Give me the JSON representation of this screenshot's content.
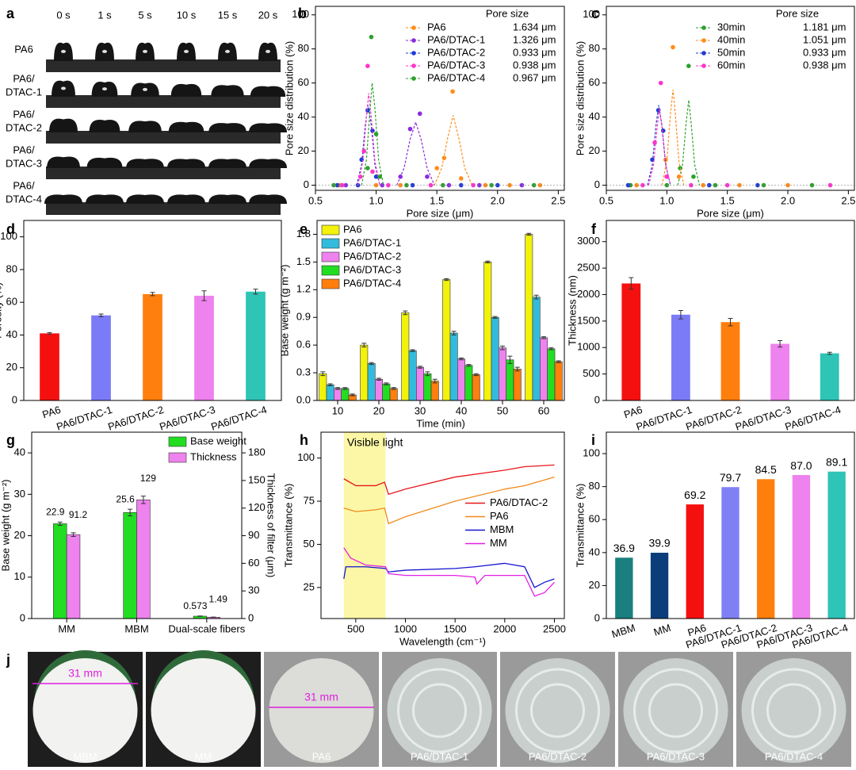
{
  "photo_panels": {
    "a": {
      "panel": "a",
      "columns": [
        "0 s",
        "1 s",
        "5 s",
        "10 s",
        "15 s",
        "20 s"
      ],
      "rows": [
        [
          "PA6"
        ],
        [
          "PA6/",
          "DTAC-1"
        ],
        [
          "PA6/",
          "DTAC-2"
        ],
        [
          "PA6/",
          "DTAC-3"
        ],
        [
          "PA6/",
          "DTAC-4"
        ]
      ]
    },
    "j": {
      "panel": "j",
      "labels": [
        "MBM",
        "MM",
        "PA6",
        "PA6/DTAC-1",
        "PA6/DTAC-2",
        "PA6/DTAC-3",
        "PA6/DTAC-4"
      ],
      "scale_label": "31 mm"
    }
  },
  "chart_data": [
    {
      "type": "scatter",
      "panel": "b",
      "xlabel": "Pore size (μm)",
      "ylabel": "Pore size distribution (%)",
      "legend_title": "Pore size",
      "xlim": [
        0.5,
        2.55
      ],
      "ylim": [
        -3,
        105
      ],
      "xticks": [
        0.5,
        {
          "value": 1,
          "label": "1.0"
        },
        1.5,
        {
          "value": 2,
          "label": "2.0"
        },
        2.5
      ],
      "yticks": [
        0,
        20,
        40,
        60,
        80,
        100
      ],
      "series": [
        {
          "name": "PA6",
          "size_label": "1.634 μm",
          "color": "#ff8c1a",
          "x": [
            0.7,
            1.0,
            1.2,
            1.5,
            1.56,
            1.63,
            1.7,
            1.9,
            2.1,
            2.35
          ],
          "values": [
            0,
            0,
            0,
            10,
            16,
            55,
            4,
            0,
            0,
            0
          ],
          "fit_x": [
            1.48,
            1.54,
            1.59,
            1.634,
            1.68,
            1.73,
            1.79
          ],
          "fit_values": [
            0,
            10,
            28,
            41,
            28,
            10,
            0
          ]
        },
        {
          "name": "PA6/DTAC-1",
          "size_label": "1.326 μm",
          "color": "#8a2be2",
          "x": [
            0.75,
            1.05,
            1.2,
            1.28,
            1.36,
            1.42,
            1.6,
            1.85,
            2.2
          ],
          "values": [
            0,
            0,
            5,
            33,
            42,
            5,
            0,
            0,
            0
          ],
          "fit_x": [
            1.17,
            1.23,
            1.28,
            1.326,
            1.37,
            1.42,
            1.48
          ],
          "fit_values": [
            0,
            10,
            27,
            37,
            27,
            10,
            0
          ]
        },
        {
          "name": "PA6/DTAC-2",
          "size_label": "0.933 μm",
          "color": "#1f3bd6",
          "x": [
            0.68,
            0.85,
            0.88,
            0.93,
            0.97,
            1.0,
            1.3,
            1.7,
            2.0
          ],
          "values": [
            0,
            0,
            15,
            44,
            32,
            5,
            0,
            0,
            0
          ],
          "fit_x": [
            0.84,
            0.88,
            0.91,
            0.933,
            0.96,
            0.99,
            1.03
          ],
          "fit_values": [
            0,
            12,
            35,
            47,
            35,
            12,
            0
          ]
        },
        {
          "name": "PA6/DTAC-3",
          "size_label": "0.938 μm",
          "color": "#ff33cc",
          "x": [
            0.72,
            0.87,
            0.9,
            0.93,
            0.97,
            1.1,
            1.45,
            1.8
          ],
          "values": [
            0,
            5,
            20,
            70,
            8,
            0,
            0,
            0
          ],
          "fit_x": [
            0.85,
            0.89,
            0.92,
            0.938,
            0.96,
            0.99,
            1.03
          ],
          "fit_values": [
            0,
            14,
            40,
            54,
            40,
            14,
            0
          ]
        },
        {
          "name": "PA6/DTAC-4",
          "size_label": "0.967 μm",
          "color": "#2ca02c",
          "x": [
            0.65,
            0.93,
            0.96,
            1.0,
            1.03,
            1.25,
            1.55,
            1.95,
            2.3
          ],
          "values": [
            0,
            10,
            87,
            30,
            5,
            0,
            0,
            0,
            0
          ],
          "fit_x": [
            0.88,
            0.92,
            0.95,
            0.967,
            0.99,
            1.02,
            1.06
          ],
          "fit_values": [
            0,
            15,
            45,
            60,
            45,
            15,
            0
          ]
        }
      ]
    },
    {
      "type": "scatter",
      "panel": "c",
      "xlabel": "Pore size (μm)",
      "ylabel": "Pore size distribution (%)",
      "legend_title": "Pore size",
      "xlim": [
        0.5,
        2.55
      ],
      "ylim": [
        -3,
        105
      ],
      "xticks": [
        0.5,
        {
          "value": 1,
          "label": "1.0"
        },
        1.5,
        {
          "value": 2,
          "label": "2.0"
        },
        2.5
      ],
      "yticks": [
        0,
        20,
        40,
        60,
        80,
        100
      ],
      "series": [
        {
          "name": "30min",
          "size_label": "1.181 μm",
          "color": "#2ca02c",
          "x": [
            0.7,
            1.0,
            1.11,
            1.18,
            1.22,
            1.4,
            1.8,
            2.2
          ],
          "values": [
            0,
            0,
            10,
            70,
            5,
            0,
            0,
            0
          ],
          "fit_x": [
            1.09,
            1.13,
            1.16,
            1.181,
            1.2,
            1.23,
            1.27
          ],
          "fit_values": [
            0,
            12,
            37,
            50,
            37,
            12,
            0
          ]
        },
        {
          "name": "40min",
          "size_label": "1.051 μm",
          "color": "#ff8c1a",
          "x": [
            0.75,
            0.99,
            1.05,
            1.1,
            1.3,
            1.6,
            2.0
          ],
          "values": [
            0,
            15,
            81,
            5,
            0,
            0,
            0
          ],
          "fit_x": [
            0.96,
            1.0,
            1.03,
            1.051,
            1.07,
            1.1,
            1.14
          ],
          "fit_values": [
            0,
            14,
            42,
            56,
            42,
            14,
            0
          ]
        },
        {
          "name": "50min",
          "size_label": "0.933 μm",
          "color": "#1f3bd6",
          "x": [
            0.68,
            0.88,
            0.93,
            0.97,
            1.0,
            1.35,
            1.75
          ],
          "values": [
            0,
            15,
            44,
            32,
            5,
            0,
            0
          ],
          "fit_x": [
            0.84,
            0.88,
            0.91,
            0.933,
            0.96,
            0.99,
            1.03
          ],
          "fit_values": [
            0,
            12,
            35,
            47,
            35,
            12,
            0
          ]
        },
        {
          "name": "60min",
          "size_label": "0.938 μm",
          "color": "#ff33cc",
          "x": [
            0.8,
            0.9,
            0.95,
            1.0,
            1.2,
            1.5,
            2.35
          ],
          "values": [
            0,
            25,
            60,
            5,
            0,
            0,
            0
          ],
          "fit_x": [
            0.85,
            0.89,
            0.92,
            0.938,
            0.96,
            0.99,
            1.03
          ],
          "fit_values": [
            0,
            12,
            34,
            45,
            34,
            12,
            0
          ]
        }
      ]
    },
    {
      "type": "bar",
      "panel": "d",
      "ylabel": "Porosity (%)",
      "ylim": [
        0,
        110
      ],
      "yticks": [
        0,
        20,
        40,
        60,
        80,
        100
      ],
      "categories": [
        "PA6",
        "PA6/DTAC-1",
        "PA6/DTAC-2",
        "PA6/DTAC-3",
        "PA6/DTAC-4"
      ],
      "values": [
        41,
        52,
        65,
        64,
        66.5
      ],
      "errors": [
        0.5,
        0.8,
        1,
        3,
        1.5
      ],
      "colors": [
        "#f51010",
        "#7b7bf7",
        "#ff7f0e",
        "#ee82ee",
        "#2ec4b6"
      ]
    },
    {
      "type": "bar",
      "panel": "e",
      "xlabel": "Time (min)",
      "ylabel": "Base weight (g m⁻²)",
      "ylim": [
        0,
        1.95
      ],
      "yticks": [
        {
          "value": 0,
          "label": "0.0"
        },
        0.3,
        0.6,
        0.9,
        1.2,
        1.5,
        1.8
      ],
      "legend": "upper left",
      "categories": [
        "10",
        "20",
        "30",
        "40",
        "50",
        "60"
      ],
      "series": [
        {
          "name": "PA6",
          "color": "#f2f20a",
          "values": [
            0.29,
            0.6,
            0.95,
            1.31,
            1.5,
            1.8
          ],
          "errors": [
            0.02,
            0.02,
            0.02,
            0.01,
            0.01,
            0.01
          ]
        },
        {
          "name": "PA6/DTAC-1",
          "color": "#33bbdd",
          "values": [
            0.17,
            0.4,
            0.54,
            0.73,
            0.9,
            1.12
          ],
          "errors": [
            0.01,
            0.01,
            0.01,
            0.02,
            0.01,
            0.02
          ]
        },
        {
          "name": "PA6/DTAC-2",
          "color": "#ee82ee",
          "values": [
            0.13,
            0.23,
            0.36,
            0.45,
            0.57,
            0.68
          ],
          "errors": [
            0.01,
            0.01,
            0.01,
            0.01,
            0.02,
            0.01
          ]
        },
        {
          "name": "PA6/DTAC-3",
          "color": "#22dd22",
          "values": [
            0.13,
            0.18,
            0.29,
            0.38,
            0.44,
            0.56
          ],
          "errors": [
            0.01,
            0.01,
            0.02,
            0.01,
            0.04,
            0.01
          ]
        },
        {
          "name": "PA6/DTAC-4",
          "color": "#ff7f0e",
          "values": [
            0.06,
            0.13,
            0.21,
            0.28,
            0.34,
            0.42
          ],
          "errors": [
            0.01,
            0.01,
            0.02,
            0.01,
            0.02,
            0.01
          ]
        }
      ]
    },
    {
      "type": "bar",
      "panel": "f",
      "ylabel": "Thickness (nm)",
      "ylim": [
        0,
        3400
      ],
      "yticks": [
        0,
        500,
        1000,
        1500,
        2000,
        2500,
        3000
      ],
      "categories": [
        "PA6",
        "PA6/DTAC-1",
        "PA6/DTAC-2",
        "PA6/DTAC-3",
        "PA6/DTAC-4"
      ],
      "values": [
        2210,
        1620,
        1480,
        1070,
        890
      ],
      "errors": [
        110,
        80,
        70,
        60,
        20
      ],
      "colors": [
        "#f51010",
        "#7b7bf7",
        "#ff7f0e",
        "#ee82ee",
        "#2ec4b6"
      ]
    },
    {
      "type": "bar",
      "panel": "g",
      "ylabel": "Base weight (g m⁻²)",
      "y2label": "Thickness of filter (μm)",
      "ylim": [
        0,
        45
      ],
      "yticks": [
        0,
        10,
        20,
        30,
        40
      ],
      "y2lim": [
        0,
        202.5
      ],
      "y2ticks": [
        0,
        30,
        60,
        90,
        120,
        150,
        180
      ],
      "legend": "upper right",
      "data_labels": true,
      "categories": [
        "MM",
        "MBM",
        "Dual-scale fibers"
      ],
      "series": [
        {
          "name": "Base weight",
          "color": "#22dd22",
          "values": [
            22.9,
            25.6,
            0.573
          ],
          "errors": [
            0.4,
            0.8,
            0.05
          ]
        },
        {
          "name": "Thickness",
          "color": "#ee82ee",
          "axis": "y2",
          "values": [
            91.2,
            129,
            1.49
          ],
          "errors": [
            2,
            4,
            0.1
          ]
        }
      ]
    },
    {
      "type": "line",
      "panel": "h",
      "xlabel": "Wavelength (cm⁻¹)",
      "ylabel": "Transmittance (%)",
      "annotation": "Visible light",
      "band": [
        380,
        800
      ],
      "xlim": [
        150,
        2600
      ],
      "ylim": [
        7,
        115
      ],
      "xticks": [
        500,
        1000,
        1500,
        2000,
        2500
      ],
      "yticks": [
        25,
        50,
        75,
        100
      ],
      "legend": "center right",
      "series": [
        {
          "name": "PA6/DTAC-2",
          "color": "#e8151b",
          "x": [
            380,
            500,
            600,
            700,
            790,
            830,
            1000,
            1500,
            2000,
            2200,
            2500
          ],
          "values": [
            88,
            84,
            84,
            84,
            86,
            79,
            82,
            89,
            93,
            95,
            96
          ]
        },
        {
          "name": "PA6",
          "color": "#f08a1c",
          "x": [
            380,
            500,
            700,
            790,
            830,
            1000,
            1500,
            2000,
            2200,
            2500
          ],
          "values": [
            71,
            69,
            70,
            71,
            62,
            66,
            75,
            82,
            84,
            89
          ]
        },
        {
          "name": "MBM",
          "color": "#1515d0",
          "x": [
            380,
            400,
            600,
            800,
            830,
            1000,
            1500,
            1700,
            2000,
            2200,
            2300,
            2400,
            2500
          ],
          "values": [
            30,
            37,
            37,
            36,
            34,
            35,
            36,
            37,
            39,
            37,
            25,
            28,
            30
          ]
        },
        {
          "name": "MM",
          "color": "#e51fe5",
          "x": [
            380,
            450,
            600,
            800,
            830,
            1000,
            1500,
            1700,
            1720,
            1800,
            2200,
            2300,
            2400,
            2500
          ],
          "values": [
            48,
            42,
            38,
            37,
            33,
            32,
            32,
            31,
            27,
            32,
            32,
            20,
            22,
            28
          ]
        }
      ]
    },
    {
      "type": "bar",
      "panel": "i",
      "ylabel": "Transmittance (%)",
      "ylim": [
        0,
        113
      ],
      "yticks": [
        0,
        20,
        40,
        60,
        80,
        100
      ],
      "categories": [
        "MBM",
        "MM",
        "PA6",
        "PA6/DTAC-1",
        "PA6/DTAC-2",
        "PA6/DTAC-3",
        "PA6/DTAC-4"
      ],
      "values": [
        36.9,
        39.9,
        69.2,
        79.7,
        84.5,
        87,
        89.1
      ],
      "value_labels": [
        "36.9",
        "39.9",
        "69.2",
        "79.7",
        "84.5",
        "87.0",
        "89.1"
      ],
      "colors": [
        "#1a7f7f",
        "#0a3d7a",
        "#f51010",
        "#8080f5",
        "#ff7f0e",
        "#ee82ee",
        "#2ec4b6"
      ]
    }
  ]
}
